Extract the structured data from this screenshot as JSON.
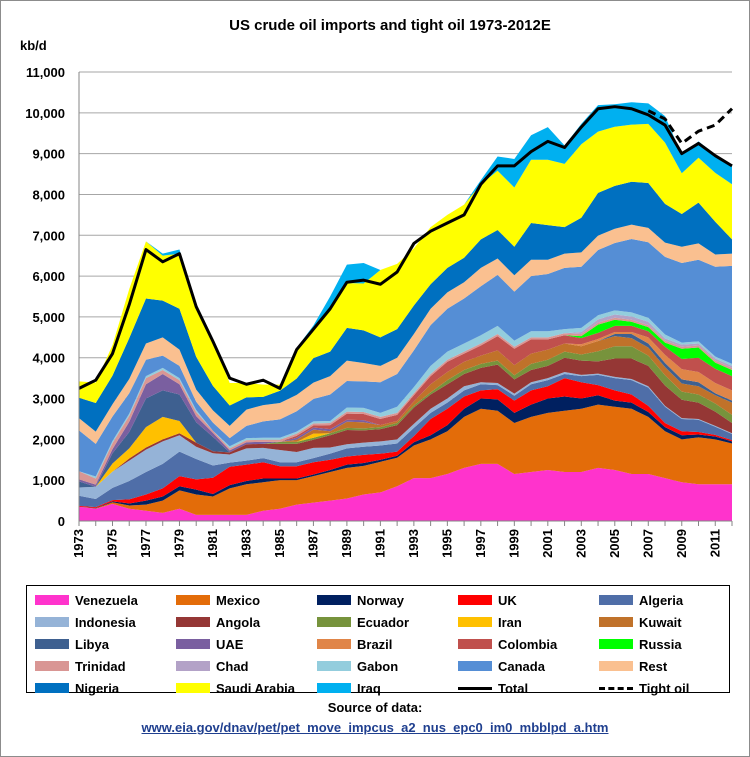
{
  "chart_data": {
    "type": "area",
    "title": "US crude oil imports and tight oil 1973-2012E",
    "ylabel": "kb/d",
    "ylim": [
      0,
      11000
    ],
    "yticks": [
      "0",
      "1,000",
      "2,000",
      "3,000",
      "4,000",
      "5,000",
      "6,000",
      "7,000",
      "8,000",
      "9,000",
      "10,000",
      "11,000"
    ],
    "xlim": [
      1973,
      2012
    ],
    "xticks": [
      "1973",
      "1975",
      "1977",
      "1979",
      "1981",
      "1983",
      "1985",
      "1987",
      "1989",
      "1991",
      "1993",
      "1995",
      "1997",
      "1999",
      "2001",
      "2003",
      "2005",
      "2007",
      "2009",
      "2011"
    ],
    "x": [
      1973,
      1974,
      1975,
      1976,
      1977,
      1978,
      1979,
      1980,
      1981,
      1982,
      1983,
      1984,
      1985,
      1986,
      1987,
      1988,
      1989,
      1990,
      1991,
      1992,
      1993,
      1994,
      1995,
      1996,
      1997,
      1998,
      1999,
      2000,
      2001,
      2002,
      2003,
      2004,
      2005,
      2006,
      2007,
      2008,
      2009,
      2010,
      2011,
      2012
    ],
    "grid": true,
    "legend_position": "bottom",
    "series": [
      {
        "name": "Venezuela",
        "color": "#ff33cc",
        "values": [
          350,
          300,
          420,
          300,
          250,
          200,
          300,
          150,
          150,
          150,
          150,
          250,
          300,
          400,
          450,
          500,
          550,
          650,
          700,
          850,
          1050,
          1050,
          1150,
          1300,
          1400,
          1400,
          1150,
          1200,
          1250,
          1200,
          1200,
          1300,
          1250,
          1150,
          1150,
          1050,
          950,
          900,
          900,
          900
        ]
      },
      {
        "name": "Mexico",
        "color": "#e36c09",
        "values": [
          0,
          10,
          40,
          80,
          150,
          300,
          450,
          500,
          450,
          650,
          750,
          700,
          700,
          600,
          650,
          700,
          750,
          700,
          750,
          700,
          800,
          950,
          1050,
          1250,
          1350,
          1300,
          1250,
          1350,
          1400,
          1500,
          1550,
          1550,
          1550,
          1600,
          1400,
          1150,
          1050,
          1150,
          1100,
          1000
        ]
      },
      {
        "name": "Norway",
        "color": "#002060",
        "values": [
          0,
          10,
          20,
          50,
          100,
          100,
          100,
          120,
          60,
          80,
          80,
          90,
          40,
          40,
          40,
          50,
          80,
          70,
          50,
          50,
          80,
          100,
          150,
          200,
          250,
          280,
          250,
          300,
          350,
          350,
          250,
          230,
          150,
          150,
          120,
          100,
          100,
          70,
          70,
          50
        ]
      },
      {
        "name": "UK",
        "color": "#ff0000",
        "values": [
          20,
          20,
          30,
          100,
          150,
          200,
          250,
          250,
          400,
          450,
          400,
          400,
          300,
          300,
          300,
          250,
          200,
          200,
          150,
          100,
          150,
          400,
          400,
          300,
          200,
          250,
          300,
          350,
          300,
          450,
          400,
          250,
          250,
          200,
          150,
          100,
          100,
          60,
          40,
          30
        ]
      },
      {
        "name": "Algeria",
        "color": "#4f6ea8",
        "values": [
          250,
          200,
          300,
          450,
          550,
          600,
          600,
          500,
          300,
          100,
          100,
          100,
          100,
          100,
          100,
          150,
          200,
          200,
          200,
          200,
          200,
          150,
          150,
          150,
          150,
          100,
          120,
          150,
          150,
          100,
          150,
          250,
          300,
          350,
          450,
          400,
          300,
          300,
          200,
          150
        ]
      },
      {
        "name": "Indonesia",
        "color": "#95b3d7",
        "values": [
          200,
          300,
          400,
          500,
          550,
          550,
          400,
          300,
          300,
          200,
          300,
          250,
          300,
          250,
          250,
          150,
          100,
          100,
          100,
          100,
          100,
          100,
          100,
          100,
          50,
          50,
          50,
          50,
          50,
          50,
          30,
          30,
          30,
          30,
          30,
          20,
          20,
          20,
          20,
          20
        ]
      },
      {
        "name": "Angola",
        "color": "#953735",
        "values": [
          0,
          0,
          0,
          50,
          50,
          50,
          50,
          100,
          50,
          50,
          100,
          100,
          150,
          200,
          200,
          300,
          350,
          300,
          300,
          350,
          400,
          350,
          350,
          300,
          350,
          450,
          350,
          300,
          300,
          350,
          350,
          300,
          450,
          500,
          500,
          500,
          450,
          400,
          350,
          250
        ]
      },
      {
        "name": "Ecuador",
        "color": "#77933c",
        "values": [
          0,
          0,
          0,
          0,
          0,
          0,
          0,
          0,
          0,
          0,
          0,
          0,
          50,
          50,
          50,
          50,
          50,
          50,
          50,
          50,
          50,
          50,
          100,
          100,
          100,
          100,
          100,
          150,
          150,
          150,
          150,
          250,
          300,
          300,
          250,
          250,
          200,
          200,
          200,
          200
        ]
      },
      {
        "name": "Iran",
        "color": "#ffc000",
        "values": [
          0,
          0,
          200,
          250,
          500,
          550,
          300,
          0,
          0,
          0,
          0,
          0,
          0,
          0,
          100,
          0,
          0,
          0,
          0,
          0,
          0,
          0,
          0,
          0,
          0,
          0,
          0,
          0,
          0,
          0,
          0,
          0,
          0,
          0,
          0,
          0,
          0,
          0,
          0,
          0
        ]
      },
      {
        "name": "Kuwait",
        "color": "#c0722a",
        "values": [
          0,
          0,
          0,
          0,
          0,
          0,
          0,
          0,
          0,
          0,
          0,
          0,
          0,
          50,
          100,
          50,
          150,
          150,
          50,
          50,
          100,
          200,
          200,
          200,
          200,
          250,
          250,
          250,
          250,
          200,
          200,
          250,
          250,
          200,
          200,
          200,
          200,
          200,
          200,
          300
        ]
      },
      {
        "name": "Libya",
        "color": "#3e6090",
        "values": [
          150,
          0,
          250,
          400,
          700,
          650,
          650,
          500,
          350,
          0,
          0,
          0,
          0,
          0,
          0,
          0,
          0,
          0,
          0,
          0,
          0,
          0,
          0,
          0,
          0,
          0,
          0,
          0,
          0,
          0,
          0,
          0,
          50,
          100,
          100,
          100,
          100,
          100,
          50,
          50
        ]
      },
      {
        "name": "UAE",
        "color": "#7a5fa0",
        "values": [
          50,
          50,
          100,
          250,
          350,
          400,
          250,
          150,
          100,
          50,
          50,
          50,
          0,
          50,
          50,
          50,
          50,
          50,
          0,
          0,
          0,
          0,
          0,
          0,
          0,
          0,
          0,
          0,
          0,
          0,
          0,
          0,
          0,
          0,
          0,
          0,
          0,
          0,
          0,
          0
        ]
      },
      {
        "name": "Brazil",
        "color": "#e08548",
        "values": [
          0,
          0,
          0,
          0,
          0,
          0,
          0,
          0,
          0,
          0,
          0,
          0,
          0,
          0,
          0,
          0,
          0,
          0,
          0,
          0,
          0,
          0,
          0,
          0,
          0,
          0,
          0,
          0,
          0,
          0,
          50,
          50,
          50,
          50,
          150,
          200,
          250,
          250,
          250,
          250
        ]
      },
      {
        "name": "Colombia",
        "color": "#c0504d",
        "values": [
          0,
          0,
          0,
          0,
          0,
          0,
          0,
          0,
          0,
          0,
          0,
          0,
          0,
          50,
          50,
          100,
          150,
          150,
          150,
          150,
          150,
          200,
          250,
          200,
          250,
          350,
          400,
          350,
          250,
          200,
          150,
          150,
          150,
          150,
          150,
          200,
          250,
          350,
          350,
          350
        ]
      },
      {
        "name": "Russia",
        "color": "#00ff00",
        "values": [
          0,
          0,
          0,
          0,
          0,
          0,
          0,
          0,
          0,
          0,
          0,
          0,
          0,
          0,
          0,
          0,
          0,
          0,
          0,
          0,
          0,
          0,
          0,
          0,
          0,
          0,
          0,
          0,
          0,
          0,
          50,
          200,
          150,
          100,
          100,
          100,
          250,
          250,
          150,
          150
        ]
      },
      {
        "name": "Trinidad",
        "color": "#d99694",
        "values": [
          200,
          150,
          150,
          150,
          150,
          100,
          100,
          100,
          50,
          50,
          50,
          50,
          50,
          50,
          50,
          50,
          50,
          50,
          50,
          50,
          50,
          50,
          50,
          50,
          50,
          50,
          50,
          50,
          50,
          50,
          50,
          50,
          50,
          50,
          50,
          50,
          50,
          50,
          50,
          50
        ]
      },
      {
        "name": "Chad",
        "color": "#b3a2c7",
        "values": [
          0,
          0,
          0,
          0,
          0,
          0,
          0,
          0,
          0,
          0,
          0,
          0,
          0,
          0,
          0,
          0,
          0,
          0,
          0,
          0,
          0,
          0,
          0,
          0,
          0,
          0,
          0,
          0,
          0,
          0,
          50,
          80,
          80,
          80,
          80,
          50,
          50,
          50,
          50,
          50
        ]
      },
      {
        "name": "Gabon",
        "color": "#93cddd",
        "values": [
          0,
          50,
          50,
          50,
          50,
          50,
          50,
          50,
          0,
          50,
          50,
          50,
          50,
          50,
          50,
          50,
          100,
          100,
          100,
          150,
          150,
          200,
          200,
          200,
          200,
          200,
          150,
          150,
          150,
          100,
          100,
          100,
          100,
          100,
          100,
          100,
          50,
          50,
          50,
          50
        ]
      },
      {
        "name": "Canada",
        "color": "#558ed5",
        "values": [
          1000,
          800,
          600,
          500,
          400,
          300,
          300,
          200,
          200,
          200,
          300,
          400,
          450,
          500,
          550,
          650,
          650,
          650,
          750,
          800,
          900,
          1000,
          1050,
          1100,
          1200,
          1250,
          1200,
          1350,
          1400,
          1500,
          1500,
          1600,
          1650,
          1800,
          1850,
          1900,
          1950,
          2000,
          2200,
          2400
        ]
      },
      {
        "name": "Rest",
        "color": "#fac090",
        "values": [
          300,
          300,
          300,
          350,
          400,
          450,
          400,
          300,
          300,
          300,
          400,
          400,
          400,
          400,
          400,
          450,
          500,
          450,
          400,
          400,
          400,
          400,
          400,
          400,
          450,
          400,
          400,
          400,
          350,
          350,
          350,
          350,
          350,
          350,
          350,
          350,
          400,
          400,
          300,
          300
        ]
      },
      {
        "name": "Nigeria",
        "color": "#0070c0",
        "values": [
          500,
          700,
          700,
          1000,
          1100,
          900,
          1000,
          800,
          600,
          500,
          300,
          200,
          300,
          400,
          600,
          600,
          800,
          800,
          700,
          700,
          700,
          600,
          600,
          600,
          700,
          700,
          700,
          900,
          850,
          650,
          850,
          1050,
          1050,
          1050,
          1100,
          950,
          800,
          1000,
          800,
          350
        ]
      },
      {
        "name": "Saudi Arabia",
        "color": "#ffff00",
        "values": [
          400,
          500,
          750,
          1200,
          1400,
          1100,
          1350,
          1250,
          1100,
          550,
          350,
          300,
          150,
          700,
          700,
          1000,
          1100,
          1150,
          1650,
          1600,
          1400,
          1400,
          1300,
          1300,
          1350,
          1450,
          1450,
          1550,
          1600,
          1550,
          1800,
          1500,
          1450,
          1400,
          1450,
          1500,
          1000,
          1100,
          1200,
          1350
        ]
      },
      {
        "name": "Iraq",
        "color": "#00b0f0",
        "values": [
          0,
          0,
          0,
          0,
          0,
          50,
          100,
          30,
          0,
          0,
          0,
          0,
          0,
          50,
          100,
          350,
          450,
          500,
          0,
          0,
          0,
          0,
          0,
          0,
          100,
          350,
          700,
          600,
          800,
          450,
          500,
          650,
          550,
          550,
          500,
          650,
          450,
          400,
          450,
          450
        ]
      }
    ],
    "total": {
      "name": "Total",
      "color": "#000000",
      "values": [
        3250,
        3450,
        4100,
        5300,
        6650,
        6350,
        6550,
        5250,
        4400,
        3500,
        3350,
        3450,
        3250,
        4200,
        4700,
        5200,
        5850,
        5900,
        5800,
        6100,
        6800,
        7100,
        7300,
        7500,
        8250,
        8700,
        8700,
        9050,
        9300,
        9150,
        9650,
        10100,
        10150,
        10100,
        9950,
        9700,
        9000,
        9250,
        8950,
        8700
      ]
    },
    "tight_oil": {
      "name": "Tight oil",
      "x": [
        2007,
        2008,
        2009,
        2010,
        2011,
        2012
      ],
      "values": [
        10050,
        9850,
        9250,
        9550,
        9700,
        10100
      ]
    }
  },
  "source": {
    "title": "Source of data:",
    "link": "www.eia.gov/dnav/pet/pet_move_impcus_a2_nus_epc0_im0_mbblpd_a.htm"
  }
}
